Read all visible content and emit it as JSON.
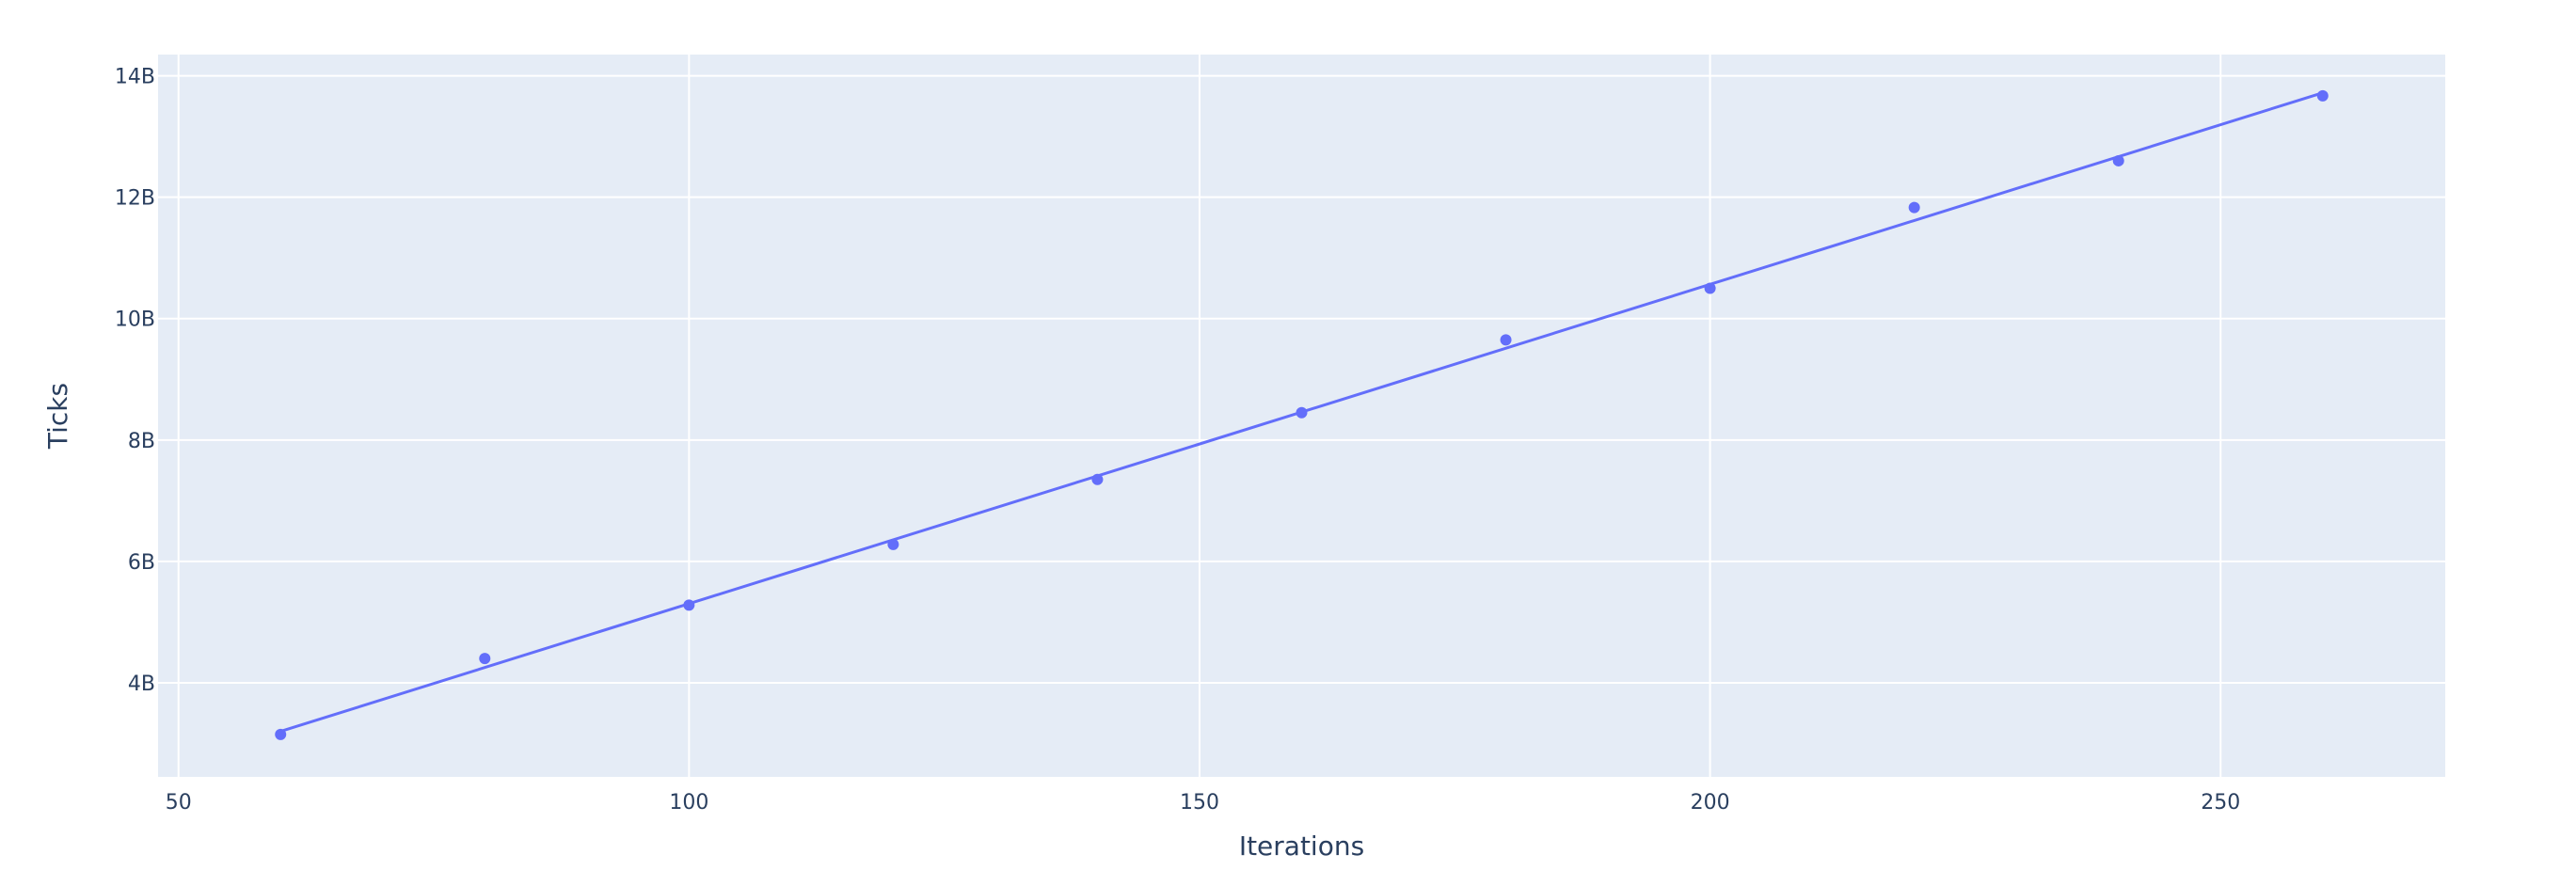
{
  "chart_data": {
    "type": "scatter",
    "xlabel": "Iterations",
    "ylabel": "Ticks",
    "xlim": [
      48,
      272
    ],
    "ylim": [
      2.45,
      14.35
    ],
    "xticks": [
      50,
      100,
      150,
      200,
      250
    ],
    "xtick_labels": [
      "50",
      "100",
      "150",
      "200",
      "250"
    ],
    "yticks": [
      4,
      6,
      8,
      10,
      12,
      14
    ],
    "ytick_labels": [
      "4B",
      "6B",
      "8B",
      "10B",
      "12B",
      "14B"
    ],
    "grid": true,
    "legend": false,
    "series": [
      {
        "mode": "markers",
        "x": [
          60,
          80,
          100,
          120,
          140,
          160,
          180,
          200,
          220,
          240,
          260
        ],
        "y": [
          3.15,
          4.4,
          5.28,
          6.28,
          7.35,
          8.45,
          9.65,
          10.5,
          11.83,
          12.6,
          13.67
        ],
        "color": "#636efa"
      },
      {
        "mode": "lines",
        "x": [
          60,
          260
        ],
        "y": [
          3.2,
          13.72
        ],
        "color": "#636efa"
      }
    ],
    "colors": {
      "plot_background": "#e5ecf6",
      "grid": "#ffffff",
      "text": "#2a3f5f"
    }
  }
}
